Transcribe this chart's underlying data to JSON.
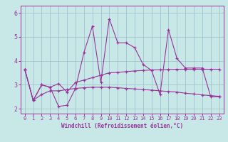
{
  "xlabel": "Windchill (Refroidissement éolien,°C)",
  "xlim": [
    -0.5,
    23.5
  ],
  "ylim": [
    1.8,
    6.3
  ],
  "yticks": [
    2,
    3,
    4,
    5,
    6
  ],
  "xticks": [
    0,
    1,
    2,
    3,
    4,
    5,
    6,
    7,
    8,
    9,
    10,
    11,
    12,
    13,
    14,
    15,
    16,
    17,
    18,
    19,
    20,
    21,
    22,
    23
  ],
  "bg_color": "#c8e8e8",
  "line_color": "#993399",
  "grid_color": "#99bbcc",
  "series": [
    [
      3.65,
      2.35,
      3.0,
      2.9,
      2.1,
      2.15,
      2.85,
      4.35,
      5.45,
      3.1,
      5.75,
      4.75,
      4.75,
      4.55,
      3.85,
      3.6,
      2.6,
      5.3,
      4.1,
      3.7,
      3.7,
      3.7,
      2.5,
      2.5
    ],
    [
      3.65,
      2.35,
      3.0,
      2.9,
      3.05,
      2.7,
      3.1,
      3.2,
      3.3,
      3.4,
      3.5,
      3.52,
      3.55,
      3.58,
      3.6,
      3.62,
      3.63,
      3.64,
      3.65,
      3.65,
      3.65,
      3.65,
      3.65,
      3.65
    ],
    [
      3.65,
      2.35,
      2.6,
      2.75,
      2.75,
      2.8,
      2.85,
      2.88,
      2.9,
      2.9,
      2.9,
      2.88,
      2.85,
      2.83,
      2.8,
      2.78,
      2.75,
      2.72,
      2.7,
      2.65,
      2.62,
      2.58,
      2.55,
      2.52
    ]
  ]
}
